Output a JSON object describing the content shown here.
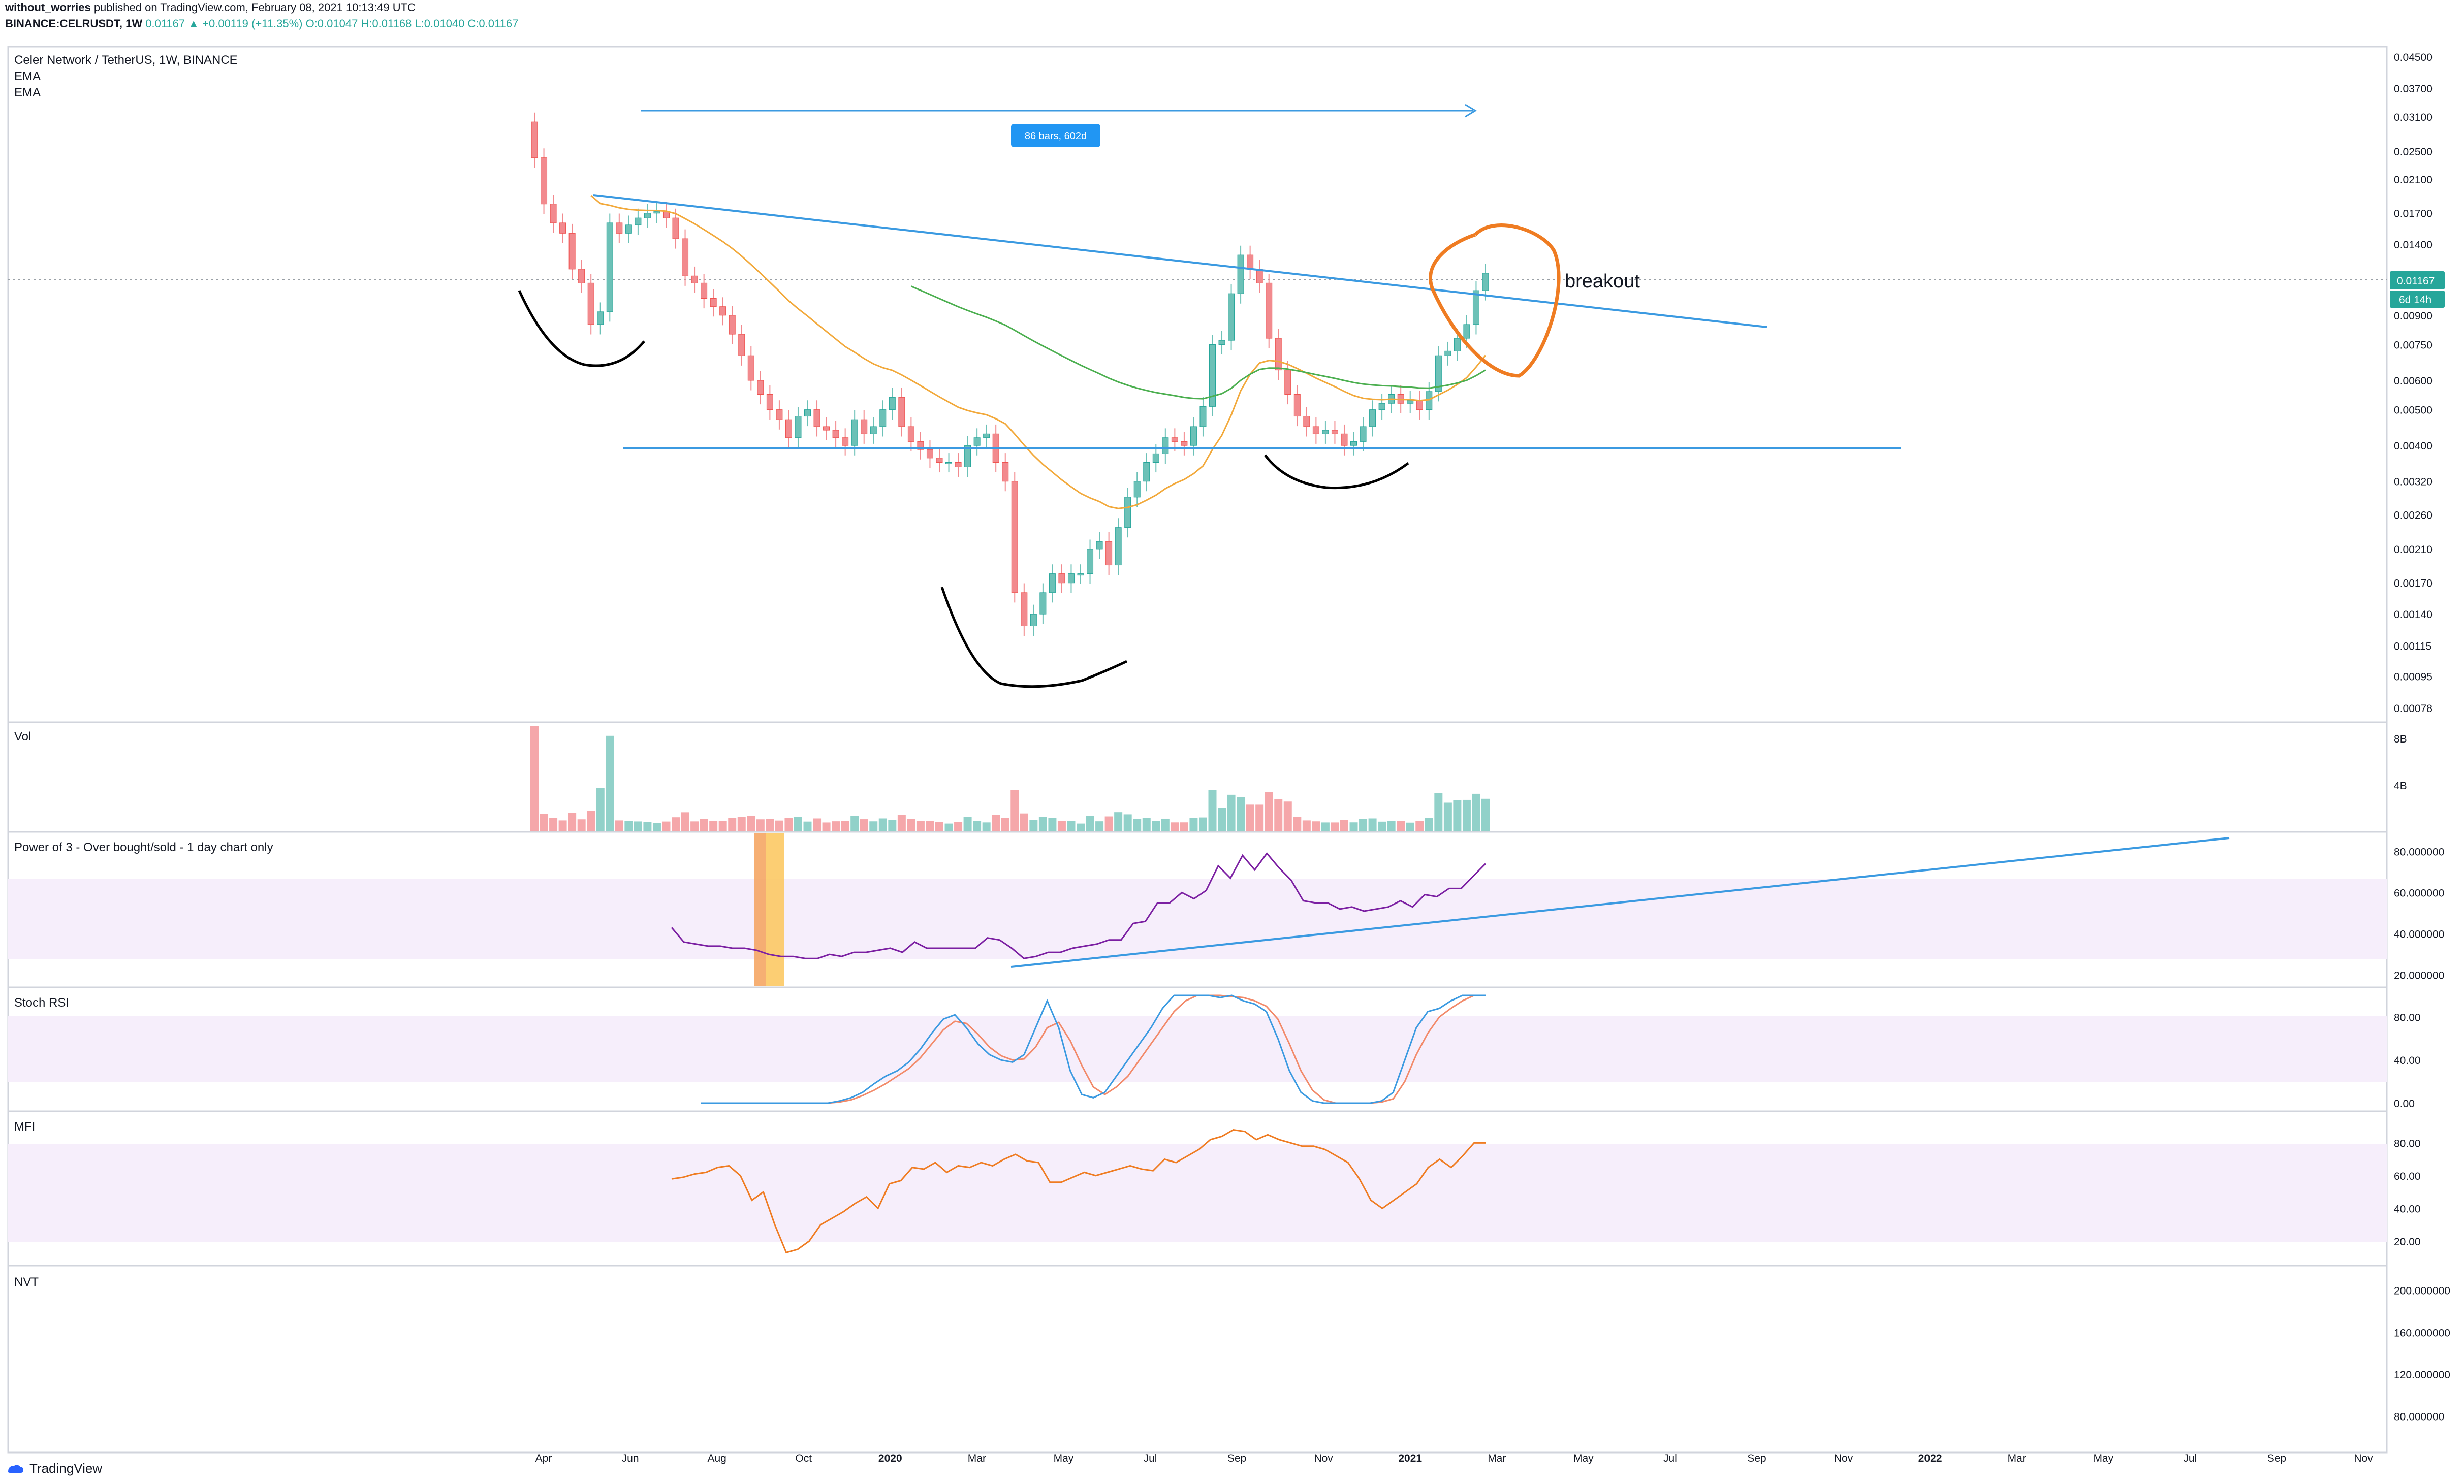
{
  "header": {
    "line1_user": "without_worries",
    "line1_rest": "published on TradingView.com, February 08, 2021 10:13:49 UTC",
    "line2_symbol": "BINANCE:CELRUSDT, 1W",
    "line2_values": "0.01167 ▲ +0.00119 (+11.35%) O:0.01047 H:0.01168 L:0.01040 C:0.01167"
  },
  "main_pane": {
    "title": "Celer Network / TetherUS, 1W, BINANCE",
    "indicator_1": "EMA",
    "indicator_2": "EMA",
    "measure_label": "86 bars, 602d",
    "annotation": "breakout",
    "price_badge": "0.01167",
    "time_badge": "6d 14h"
  },
  "panes": {
    "vol": "Vol",
    "power": "Power of 3 - Over bought/sold - 1 day chart only",
    "stoch": "Stoch RSI",
    "mfi": "MFI",
    "nvt": "NVT"
  },
  "footer": {
    "brand": "TradingView"
  },
  "colors": {
    "up": "#6cc1b7",
    "down": "#f28a8e",
    "ema_fast": "#f2a93b",
    "ema_slow": "#4caf50",
    "trend": "#3b9ae1",
    "orange": "#ef7c22",
    "purple": "#7b1fa2",
    "band": "#f6eefb"
  },
  "chart_data": [
    {
      "type": "candlestick",
      "title": "Celer Network / TetherUS, 1W, BINANCE",
      "scale": "log",
      "price_ticks": [
        "0.04500",
        "0.03700",
        "0.03100",
        "0.02500",
        "0.02100",
        "0.01700",
        "0.01400",
        "0.01167",
        "0.00900",
        "0.00750",
        "0.00600",
        "0.00500",
        "0.00400",
        "0.00320",
        "0.00260",
        "0.00210",
        "0.00170",
        "0.00140",
        "0.00115",
        "0.00095",
        "0.00078"
      ],
      "x_ticks": [
        "Apr",
        "Jun",
        "Aug",
        "Oct",
        "2020",
        "Mar",
        "May",
        "Jul",
        "Sep",
        "Nov",
        "2021",
        "Mar",
        "May",
        "Jul",
        "Sep",
        "Nov",
        "2022",
        "Mar",
        "May",
        "Jul",
        "Sep",
        "Nov"
      ],
      "weekly_close": [
        0.024,
        0.018,
        0.016,
        0.015,
        0.012,
        0.011,
        0.0085,
        0.0092,
        0.016,
        0.015,
        0.0158,
        0.0165,
        0.017,
        0.0172,
        0.0165,
        0.0145,
        0.0115,
        0.011,
        0.01,
        0.0095,
        0.009,
        0.008,
        0.007,
        0.006,
        0.0055,
        0.005,
        0.0047,
        0.0042,
        0.0048,
        0.005,
        0.0045,
        0.0044,
        0.0042,
        0.004,
        0.0047,
        0.0043,
        0.0045,
        0.005,
        0.0054,
        0.0045,
        0.0041,
        0.0039,
        0.0037,
        0.0036,
        0.0036,
        0.0035,
        0.004,
        0.0042,
        0.0043,
        0.0036,
        0.0032,
        0.0016,
        0.0013,
        0.0014,
        0.0016,
        0.0018,
        0.0017,
        0.0018,
        0.0018,
        0.0021,
        0.0022,
        0.0019,
        0.0024,
        0.0029,
        0.0032,
        0.0036,
        0.0038,
        0.0042,
        0.0041,
        0.004,
        0.0045,
        0.0051,
        0.0075,
        0.0077,
        0.0103,
        0.0131,
        0.012,
        0.011,
        0.0078,
        0.0064,
        0.0055,
        0.0048,
        0.0045,
        0.0043,
        0.0044,
        0.0043,
        0.004,
        0.0041,
        0.0045,
        0.005,
        0.0052,
        0.0055,
        0.0052,
        0.0053,
        0.005,
        0.0056,
        0.007,
        0.0072,
        0.0078,
        0.0085,
        0.0105,
        0.0117
      ],
      "ema_fast_label": "EMA",
      "ema_slow_label": "EMA"
    },
    {
      "type": "bar",
      "name": "Vol",
      "y_ticks": [
        "8B",
        "4B"
      ],
      "note": "volume histogram, largest bar at listing week"
    },
    {
      "type": "line",
      "name": "Power of 3 - Over bought/sold - 1 day chart only",
      "y_ticks": [
        "80.000000",
        "60.000000",
        "40.000000",
        "20.000000"
      ],
      "values": [
        43,
        36,
        35,
        34,
        34,
        33,
        33,
        32,
        30,
        29,
        29,
        28,
        28,
        30,
        29,
        31,
        31,
        32,
        33,
        31,
        36,
        33,
        33,
        33,
        33,
        33,
        38,
        37,
        33,
        28,
        29,
        31,
        31,
        33,
        34,
        35,
        37,
        37,
        45,
        46,
        55,
        55,
        60,
        57,
        61,
        73,
        67,
        78,
        71,
        79,
        72,
        66,
        56,
        55,
        55,
        52,
        53,
        51,
        52,
        53,
        56,
        53,
        59,
        58,
        62,
        62,
        68,
        74
      ]
    },
    {
      "type": "line",
      "name": "Stoch RSI",
      "y_ticks": [
        "80.00",
        "40.00",
        "0.00"
      ],
      "k": [
        0,
        0,
        0,
        0,
        0,
        0,
        0,
        0,
        0,
        0,
        0,
        0,
        2,
        5,
        10,
        18,
        25,
        30,
        38,
        50,
        65,
        78,
        82,
        70,
        55,
        45,
        40,
        38,
        45,
        70,
        95,
        70,
        30,
        8,
        5,
        10,
        25,
        40,
        55,
        70,
        88,
        100,
        100,
        100,
        100,
        98,
        100,
        95,
        92,
        85,
        60,
        30,
        10,
        2,
        0,
        0,
        0,
        0,
        0,
        2,
        10,
        40,
        70,
        85,
        88,
        95,
        100,
        100,
        100
      ],
      "d": [
        0,
        0,
        0,
        0,
        0,
        0,
        0,
        0,
        0,
        0,
        0,
        0,
        1,
        3,
        7,
        12,
        18,
        25,
        32,
        42,
        55,
        68,
        76,
        74,
        64,
        52,
        44,
        40,
        41,
        52,
        70,
        75,
        58,
        35,
        15,
        8,
        15,
        25,
        40,
        55,
        70,
        85,
        95,
        100,
        100,
        100,
        99,
        98,
        95,
        90,
        78,
        55,
        30,
        12,
        3,
        0,
        0,
        0,
        0,
        1,
        4,
        20,
        45,
        65,
        80,
        88,
        95,
        100,
        100
      ]
    },
    {
      "type": "line",
      "name": "MFI",
      "y_ticks": [
        "80.00",
        "60.00",
        "40.00",
        "20.00"
      ],
      "values": [
        58,
        59,
        61,
        62,
        65,
        66,
        60,
        45,
        50,
        30,
        13,
        15,
        20,
        30,
        34,
        38,
        43,
        47,
        40,
        55,
        57,
        65,
        64,
        68,
        62,
        66,
        65,
        68,
        66,
        70,
        73,
        69,
        68,
        56,
        56,
        59,
        62,
        60,
        62,
        64,
        66,
        64,
        63,
        70,
        68,
        72,
        76,
        82,
        84,
        88,
        87,
        82,
        85,
        82,
        80,
        78,
        78,
        76,
        72,
        68,
        58,
        45,
        40,
        45,
        50,
        55,
        65,
        70,
        65,
        72,
        80,
        80
      ]
    },
    {
      "type": "line",
      "name": "NVT",
      "y_ticks": [
        "200.000000",
        "160.000000",
        "120.000000",
        "80.000000"
      ],
      "values": []
    }
  ]
}
